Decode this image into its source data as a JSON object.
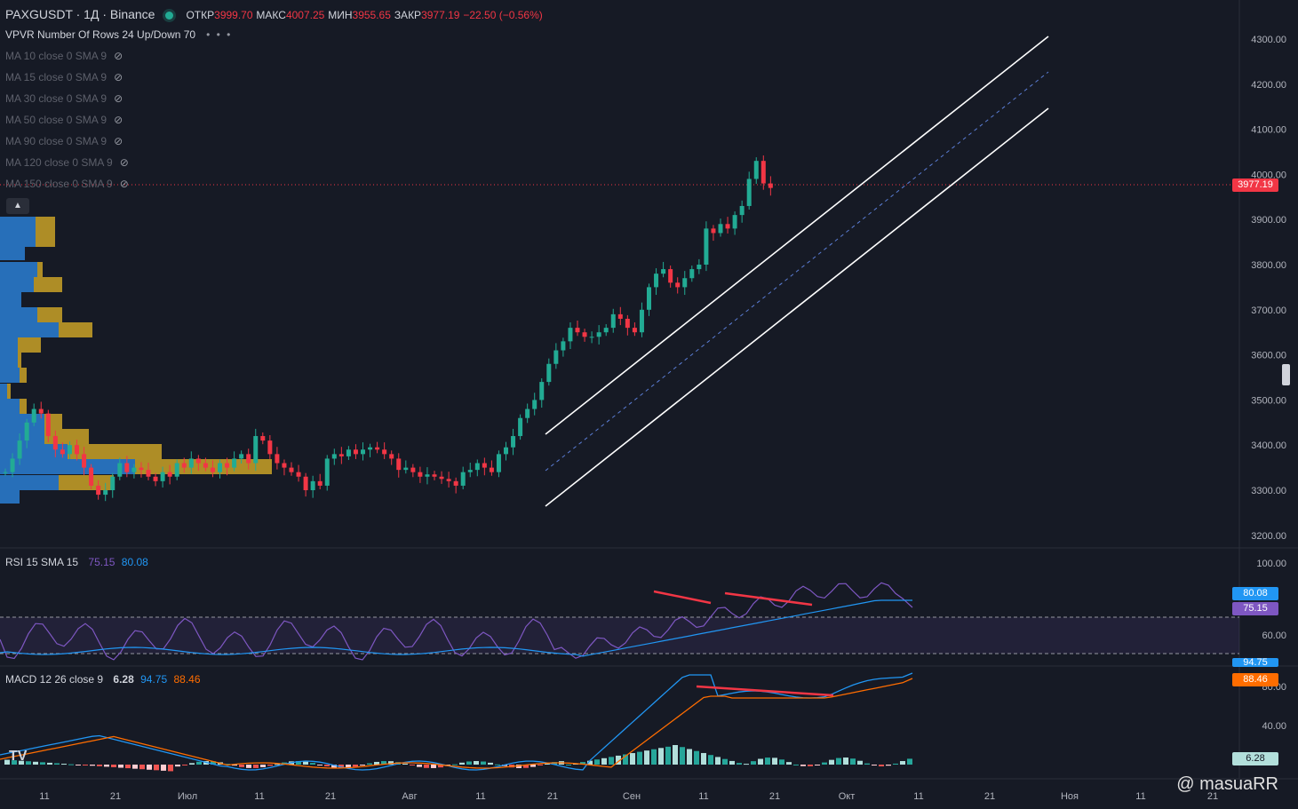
{
  "header": {
    "symbol": "PAXGUSDT · 1Д · Binance",
    "open_label": "ОТКР",
    "open": "3999.70",
    "high_label": "МАКС",
    "high": "4007.25",
    "low_label": "МИН",
    "low": "3955.65",
    "close_label": "ЗАКР",
    "close": "3977.19",
    "change": "−22.50 (−0.56%)"
  },
  "indicators": {
    "vpvr": "VPVR Number Of Rows 24 Up/Down 70",
    "more": "• • •",
    "ma": [
      "MA 10 close 0 SMA 9",
      "MA 15 close 0 SMA 9",
      "MA 30 close 0 SMA 9",
      "MA 50 close 0 SMA 9",
      "MA 90 close 0 SMA 9",
      "MA 120 close 0 SMA 9",
      "MA 150 close 0 SMA 9"
    ],
    "collapse_icon": "chevron-up-icon"
  },
  "rsi": {
    "label": "RSI 15 SMA 15",
    "v1": "75.15",
    "v2": "80.08",
    "levels": [
      "100.00",
      "60.00"
    ]
  },
  "macd": {
    "label": "MACD 12 26 close 9",
    "hist": "6.28",
    "macd": "94.75",
    "signal": "88.46",
    "levels": [
      "80.00",
      "40.00"
    ],
    "box_macd": "94.75"
  },
  "price_axis": [
    "4300.00",
    "4200.00",
    "4100.00",
    "4000.00",
    "3900.00",
    "3800.00",
    "3700.00",
    "3600.00",
    "3500.00",
    "3400.00",
    "3300.00",
    "3200.00"
  ],
  "last_price": "3977.19",
  "time_axis": [
    "11",
    "21",
    "Июл",
    "11",
    "21",
    "Авг",
    "11",
    "21",
    "Сен",
    "11",
    "21",
    "Окт",
    "11",
    "21",
    "Ноя",
    "11",
    "21"
  ],
  "colors": {
    "bg": "#161a25",
    "up": "#22ab94",
    "down": "#f23645",
    "rsi": "#7e57c2",
    "macd": "#2962ff",
    "signal": "#f7525f"
  },
  "watermark": "@ masuaRR",
  "logo": "TV"
}
